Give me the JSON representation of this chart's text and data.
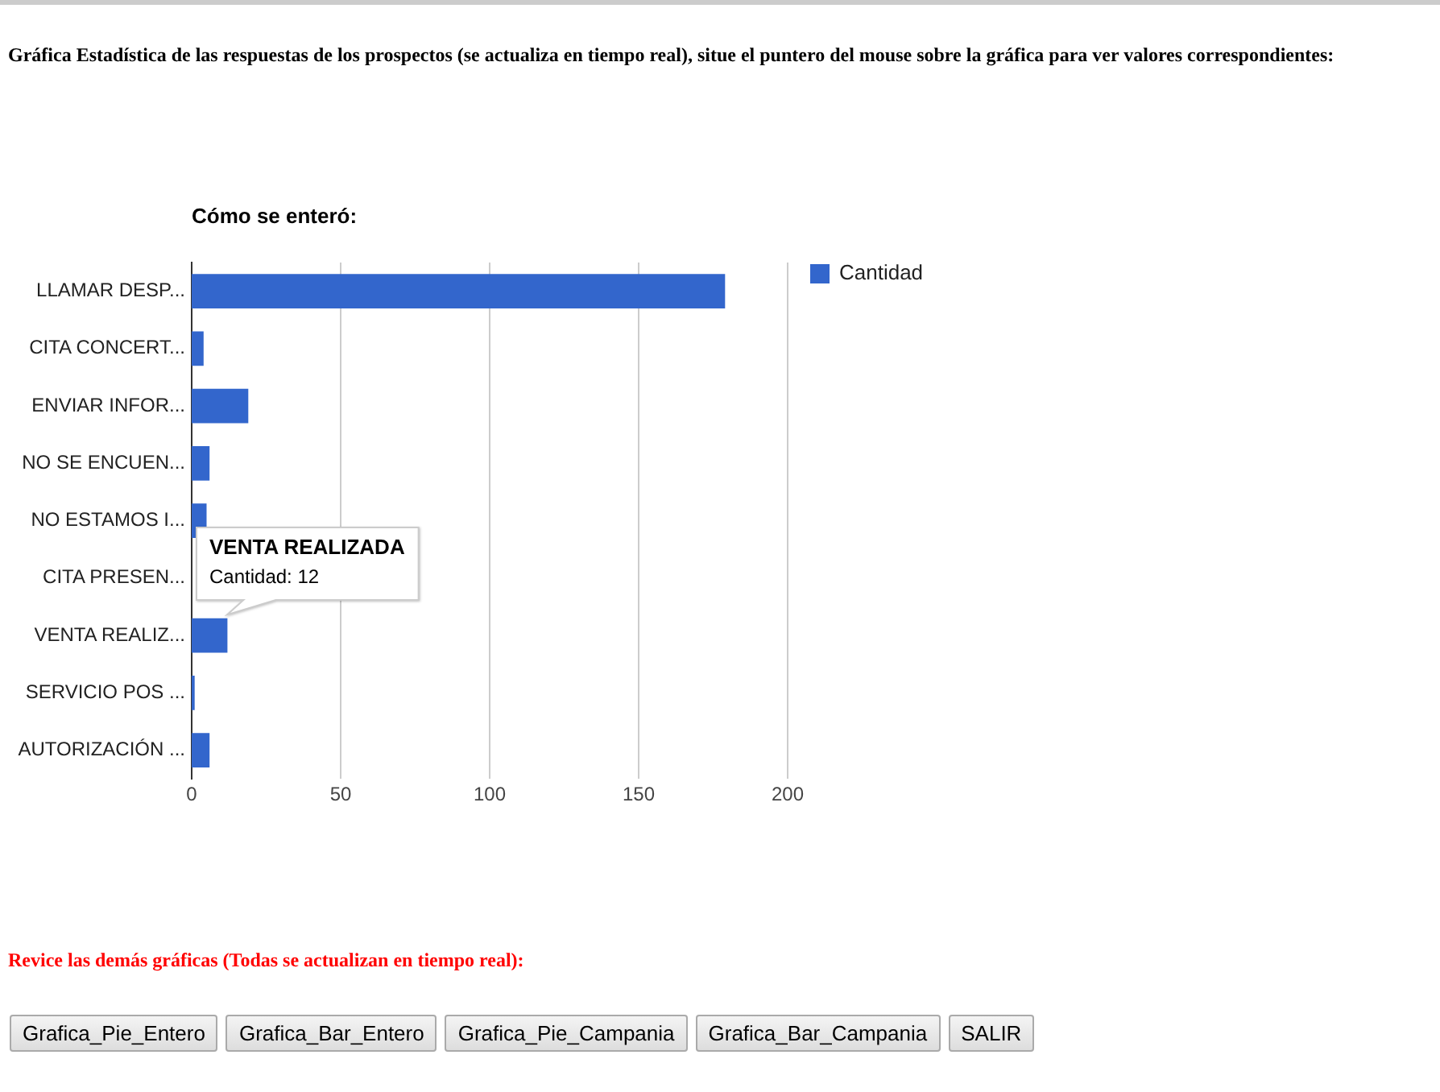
{
  "chart_data": {
    "type": "bar",
    "orientation": "horizontal",
    "title": "Cómo se enteró:",
    "categories": [
      "LLAMAR DESP...",
      "CITA CONCERT...",
      "ENVIAR INFOR...",
      "NO SE ENCUEN...",
      "NO ESTAMOS I...",
      "CITA PRESEN...",
      "VENTA REALIZ...",
      "SERVICIO POS ...",
      "AUTORIZACIÓN ..."
    ],
    "series": [
      {
        "name": "Cantidad",
        "color": "#3366cc",
        "values": [
          179,
          4,
          19,
          6,
          5,
          null,
          12,
          1,
          6
        ]
      }
    ],
    "xlim": [
      0,
      200
    ],
    "xticks": [
      0,
      50,
      100,
      150,
      200
    ],
    "grid": "x",
    "legend": "right",
    "annotations": [
      "Gráfica Estadística de las respuestas de los prospectos (se actualiza en tiempo real), situe el puntero del mouse sobre la gráfica para ver valores correspondientes:",
      "Revice las demás gráficas (Todas se actualizan en tiempo real):",
      "Grafica_Pie_Entero",
      "Grafica_Bar_Entero",
      "Grafica_Pie_Campania",
      "Grafica_Bar_Campania",
      "SALIR",
      {
        "text": "VENTA REALIZADA\nCantidad: 12",
        "x": 12,
        "y": "VENTA REALIZ..."
      }
    ]
  }
}
